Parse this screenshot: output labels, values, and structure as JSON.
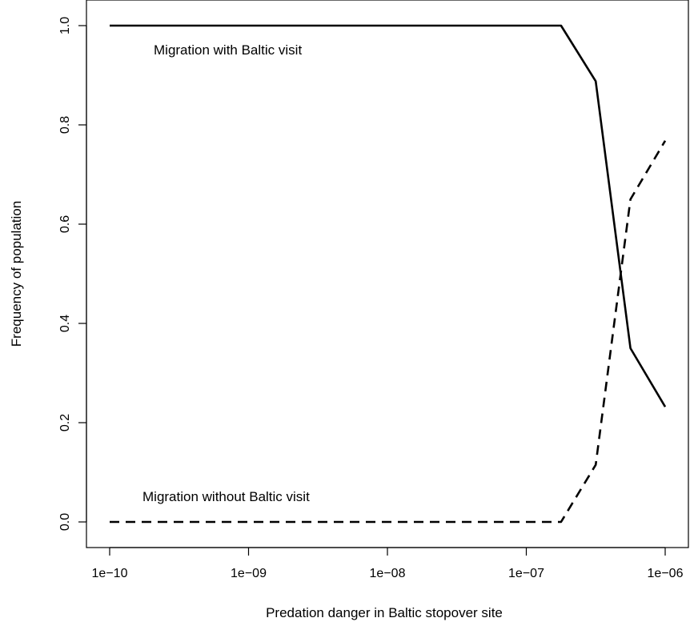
{
  "chart_data": {
    "type": "line",
    "xlabel": "Predation danger in Baltic stopover site",
    "ylabel": "Frequency of population",
    "x_scale": "log",
    "xlim": [
      1e-10,
      1e-06
    ],
    "ylim": [
      0.0,
      1.0
    ],
    "x_ticks": [
      1e-10,
      1e-09,
      1e-08,
      1e-07,
      1e-06
    ],
    "x_tick_labels": [
      "1e−10",
      "1e−09",
      "1e−08",
      "1e−07",
      "1e−06"
    ],
    "y_ticks": [
      0.0,
      0.2,
      0.4,
      0.6,
      0.8,
      1.0
    ],
    "y_tick_labels": [
      "0.0",
      "0.2",
      "0.4",
      "0.6",
      "0.8",
      "1.0"
    ],
    "grid": false,
    "legend": "none",
    "series": [
      {
        "name": "Migration with Baltic visit",
        "style": "solid",
        "color": "#000000",
        "x": [
          1e-10,
          1.778e-07,
          3.162e-07,
          5.623e-07,
          1e-06
        ],
        "y": [
          1.0,
          1.0,
          0.888,
          0.35,
          0.232
        ]
      },
      {
        "name": "Migration without Baltic visit",
        "style": "dashed",
        "color": "#000000",
        "x": [
          1e-10,
          1.778e-07,
          3.162e-07,
          5.623e-07,
          1e-06
        ],
        "y": [
          0.0,
          0.0,
          0.115,
          0.65,
          0.768
        ]
      }
    ]
  }
}
